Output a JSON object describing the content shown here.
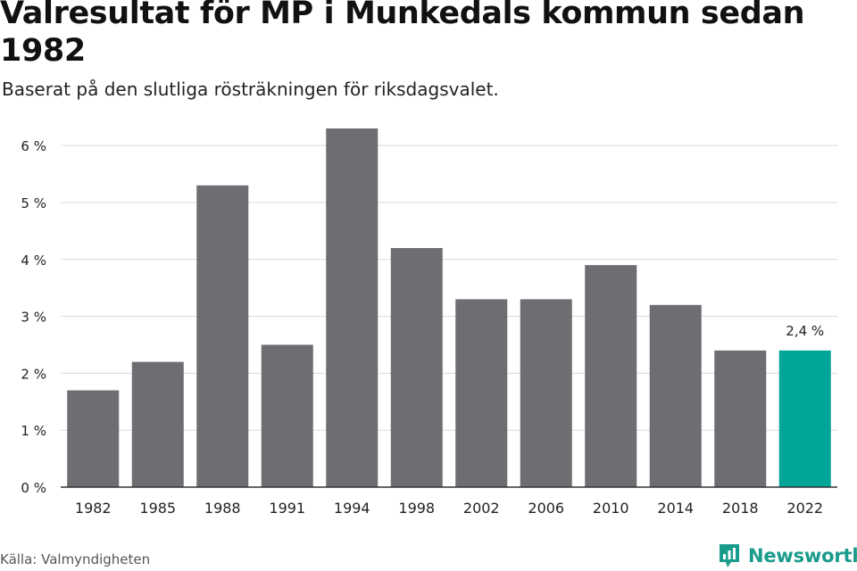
{
  "header": {
    "title": "Valresultat för MP i Munkedals kommun sedan 1982",
    "subtitle": "Baserat på den slutliga rösträkningen för riksdagsvalet."
  },
  "footer": {
    "source": "Källa: Valmyndigheten",
    "brand_name": "Newsworthy",
    "brand_color": "#1a9c8c"
  },
  "colors": {
    "bar": "#6e6d72",
    "highlight": "#00a59a",
    "grid": "#d9d9d9",
    "axis": "#333333"
  },
  "chart_data": {
    "type": "bar",
    "title": "Valresultat för MP i Munkedals kommun sedan 1982",
    "subtitle": "Baserat på den slutliga rösträkningen för riksdagsvalet.",
    "xlabel": "",
    "ylabel": "",
    "categories": [
      "1982",
      "1985",
      "1988",
      "1991",
      "1994",
      "1998",
      "2002",
      "2006",
      "2010",
      "2014",
      "2018",
      "2022"
    ],
    "values": [
      1.7,
      2.2,
      5.3,
      2.5,
      6.3,
      4.2,
      3.3,
      3.3,
      3.9,
      3.2,
      2.4,
      2.4
    ],
    "ylim": [
      0,
      6.3
    ],
    "yticks": [
      0,
      1,
      2,
      3,
      4,
      5,
      6
    ],
    "ytick_labels": [
      "0 %",
      "1 %",
      "2 %",
      "3 %",
      "4 %",
      "5 %",
      "6 %"
    ],
    "grid": true,
    "highlight_index": 11,
    "annotations": [
      {
        "category": "2022",
        "text": "2,4 %"
      }
    ]
  }
}
